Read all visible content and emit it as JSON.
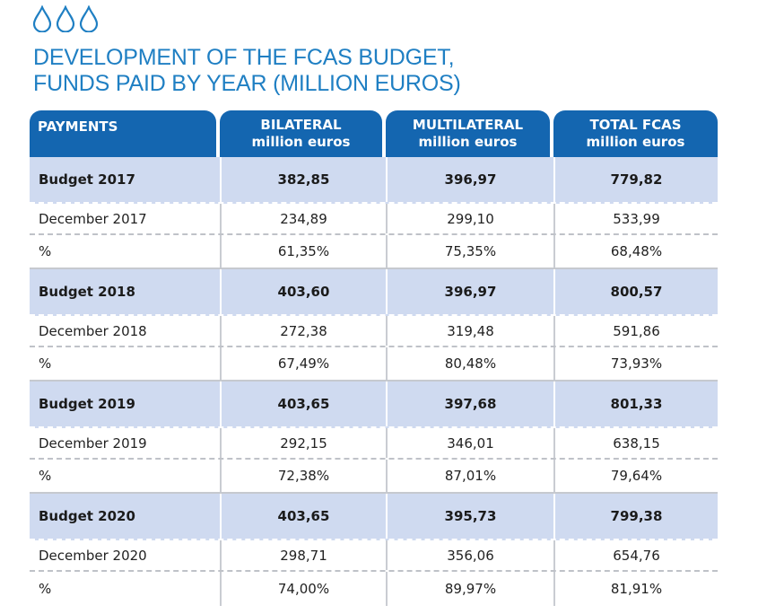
{
  "title": {
    "line1": "DEVELOPMENT OF THE FCAS BUDGET,",
    "line2": "FUNDS PAID BY YEAR (MILLION EUROS)"
  },
  "decor": {
    "icon": "water-drop-icon",
    "count": 3,
    "color": "#1f7fc3"
  },
  "colors": {
    "accent": "#1f7fc3",
    "header_bg": "#1466b0",
    "budget_row_bg": "#cfdaf0"
  },
  "table": {
    "headers": [
      {
        "line1": "PAYMENTS",
        "line2": ""
      },
      {
        "line1": "BILATERAL",
        "line2": "million euros"
      },
      {
        "line1": "MULTILATERAL",
        "line2": "million euros"
      },
      {
        "line1": "TOTAL FCAS",
        "line2": "million euros"
      }
    ],
    "rows": [
      {
        "type": "budget",
        "cells": [
          "Budget 2017",
          "382,85",
          "396,97",
          "779,82"
        ]
      },
      {
        "type": "dec",
        "cells": [
          "December 2017",
          "234,89",
          "299,10",
          "533,99"
        ]
      },
      {
        "type": "pct",
        "cells": [
          "%",
          "61,35%",
          "75,35%",
          "68,48%"
        ]
      },
      {
        "type": "budget",
        "cells": [
          "Budget 2018",
          "403,60",
          "396,97",
          "800,57"
        ]
      },
      {
        "type": "dec",
        "cells": [
          "December 2018",
          "272,38",
          "319,48",
          "591,86"
        ]
      },
      {
        "type": "pct",
        "cells": [
          "%",
          "67,49%",
          "80,48%",
          "73,93%"
        ]
      },
      {
        "type": "budget",
        "cells": [
          "Budget 2019",
          "403,65",
          "397,68",
          "801,33"
        ]
      },
      {
        "type": "dec",
        "cells": [
          "December 2019",
          "292,15",
          "346,01",
          "638,15"
        ]
      },
      {
        "type": "pct",
        "cells": [
          "%",
          "72,38%",
          "87,01%",
          "79,64%"
        ]
      },
      {
        "type": "budget",
        "cells": [
          "Budget 2020",
          "403,65",
          "395,73",
          "799,38"
        ]
      },
      {
        "type": "dec",
        "cells": [
          "December 2020",
          "298,71",
          "356,06",
          "654,76"
        ]
      },
      {
        "type": "pct",
        "cells": [
          "%",
          "74,00%",
          "89,97%",
          "81,91%"
        ]
      }
    ]
  }
}
